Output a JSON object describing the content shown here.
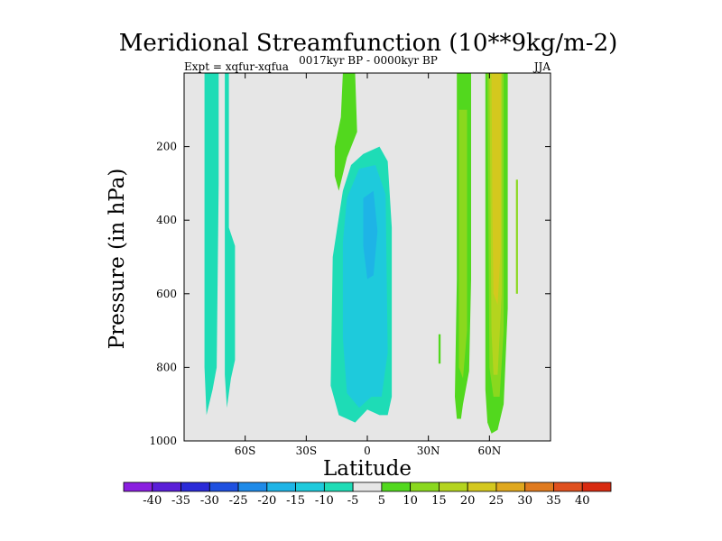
{
  "chart_data": {
    "type": "heatmap",
    "title": "Meridional Streamfunction (10**9kg/m-2)",
    "subtitle": "0017kyr BP - 0000kyr BP",
    "left_label": "Expt = xqfur-xqfua",
    "right_label": "JJA",
    "xlabel": "Latitude",
    "ylabel": "Pressure (in hPa)",
    "xlim": [
      -90,
      90
    ],
    "ylim": [
      1000,
      0
    ],
    "x_ticks": [
      {
        "value": -60,
        "label": "60S"
      },
      {
        "value": -30,
        "label": "30S"
      },
      {
        "value": 0,
        "label": "0"
      },
      {
        "value": 30,
        "label": "30N"
      },
      {
        "value": 60,
        "label": "60N"
      }
    ],
    "y_ticks": [
      {
        "value": 200,
        "label": "200"
      },
      {
        "value": 400,
        "label": "400"
      },
      {
        "value": 600,
        "label": "600"
      },
      {
        "value": 800,
        "label": "800"
      },
      {
        "value": 1000,
        "label": "1000"
      }
    ],
    "colorbar": {
      "levels": [
        -40,
        -35,
        -30,
        -25,
        -20,
        -15,
        -10,
        -5,
        5,
        10,
        15,
        20,
        25,
        30,
        35,
        40
      ],
      "labels": [
        "-40",
        "-35",
        "-30",
        "-25",
        "-20",
        "-15",
        "-10",
        "-5",
        "5",
        "10",
        "15",
        "20",
        "25",
        "30",
        "35",
        "40"
      ],
      "colors": [
        "#8a1ee0",
        "#5a1ed8",
        "#2a2ad8",
        "#1e50e0",
        "#1e8ae8",
        "#1eb4e6",
        "#1ecadc",
        "#1edcb6",
        "#e6e6e6",
        "#52d81e",
        "#8ad81e",
        "#b4d41e",
        "#d4c81e",
        "#e0a81e",
        "#e07a1e",
        "#e0501e",
        "#d82a10"
      ]
    },
    "regions": [
      {
        "name": "sh-polar-band",
        "level": "-10 to -5",
        "lat": [
          -80,
          -73
        ],
        "pressure": [
          0,
          930
        ]
      },
      {
        "name": "sh-subpolar-band",
        "level": "-10 to -5",
        "lat": [
          -70,
          -65
        ],
        "pressure": [
          0,
          910
        ]
      },
      {
        "name": "equatorial-negative-cell",
        "level": "-15 to -5",
        "lat": [
          -18,
          12
        ],
        "pressure": [
          200,
          950
        ]
      },
      {
        "name": "equatorial-positive-tongue",
        "level": "5 to 10",
        "lat": [
          -16,
          -6
        ],
        "pressure": [
          0,
          320
        ]
      },
      {
        "name": "nh-midlat-band",
        "level": "5 to 15",
        "lat": [
          44,
          51
        ],
        "pressure": [
          0,
          940
        ]
      },
      {
        "name": "nh-high-lat-band",
        "level": "5 to 20",
        "lat": [
          59,
          68
        ],
        "pressure": [
          0,
          970
        ]
      },
      {
        "name": "nh-max-core",
        "level": "15 to 20",
        "lat": [
          61,
          66
        ],
        "pressure": [
          0,
          630
        ]
      }
    ]
  }
}
